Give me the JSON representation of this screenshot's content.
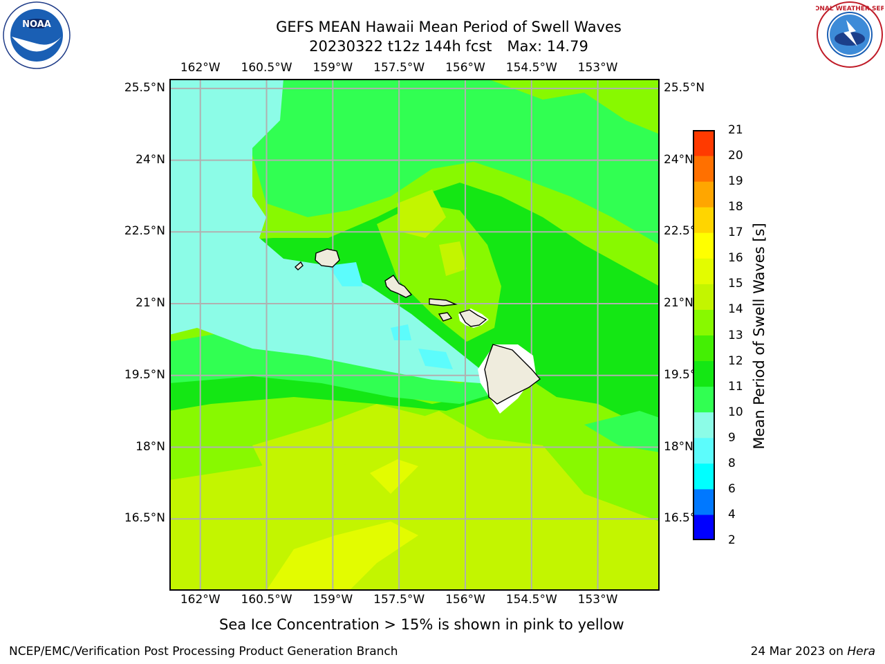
{
  "title": {
    "line1": "GEFS MEAN Hawaii Mean Period of Swell Waves",
    "line2_run": "20230322 t12z 144h fcst",
    "line2_max": "Max: 14.79"
  },
  "logos": {
    "left": "noaa-logo",
    "right": "nws-logo",
    "left_text": "NOAA",
    "right_text": "NATIONAL WEATHER SERVICE"
  },
  "map": {
    "lon_range": [
      -162.7,
      -151.6
    ],
    "lat_range": [
      15.0,
      25.7
    ],
    "lon_ticks": [
      "162°W",
      "160.5°W",
      "159°W",
      "157.5°W",
      "156°W",
      "154.5°W",
      "153°W"
    ],
    "lon_values": [
      -162,
      -160.5,
      -159,
      -157.5,
      -156,
      -154.5,
      -153
    ],
    "lat_ticks": [
      "25.5°N",
      "24°N",
      "22.5°N",
      "21°N",
      "19.5°N",
      "18°N",
      "16.5°N"
    ],
    "lat_values": [
      25.5,
      24,
      22.5,
      21,
      19.5,
      18,
      16.5
    ],
    "grid": true,
    "land_color": "#efecdd"
  },
  "colorbar": {
    "title": "Mean Period of Swell Waves [s]",
    "levels": [
      "2",
      "4",
      "6",
      "8",
      "9",
      "10",
      "11",
      "12",
      "13",
      "14",
      "15",
      "16",
      "17",
      "18",
      "19",
      "20",
      "21"
    ],
    "colors": [
      "#0000ff",
      "#0078ff",
      "#00ffff",
      "#5cfcfc",
      "#8cfce7",
      "#31ff52",
      "#14e714",
      "#44ef04",
      "#88f900",
      "#c3f500",
      "#e3fc00",
      "#ffff00",
      "#ffd500",
      "#ffa600",
      "#ff7000",
      "#ff3a00",
      "#ff0000"
    ]
  },
  "caption": "Sea Ice Concentration > 15% is shown in pink to yellow",
  "footer": {
    "left": "NCEP/EMC/Verification Post Processing Product Generation Branch",
    "right_date": "24 Mar 2023 on",
    "right_host": "Hera"
  }
}
